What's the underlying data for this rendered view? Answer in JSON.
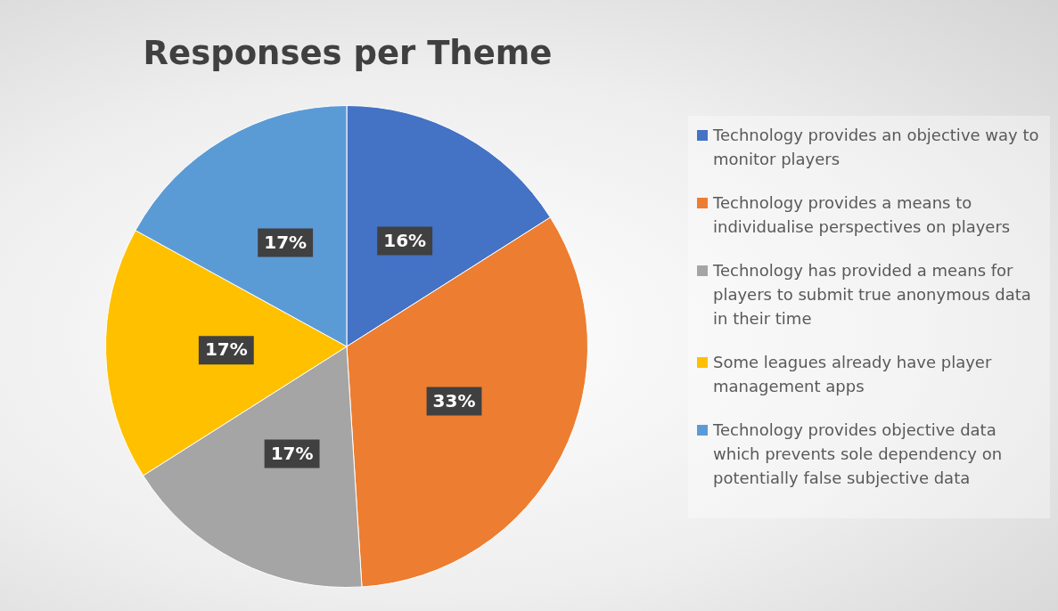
{
  "chart_data": {
    "type": "pie",
    "title": "Responses per Theme",
    "categories": [
      "Technology provides an objective way to monitor players",
      "Technology provides a means to individualise perspectives on players",
      "Technology has provided a means for players to submit true anonymous data in their time",
      "Some leagues already have player management apps",
      "Technology provides objective data which prevents sole dependency on potentially false subjective data"
    ],
    "values": [
      16,
      33,
      17,
      17,
      17
    ],
    "colors": [
      "#4472c4",
      "#ed7d31",
      "#a5a5a5",
      "#ffc000",
      "#5b9bd5"
    ],
    "value_labels": [
      "16%",
      "33%",
      "17%",
      "17%",
      "17%"
    ],
    "legend": "right"
  }
}
